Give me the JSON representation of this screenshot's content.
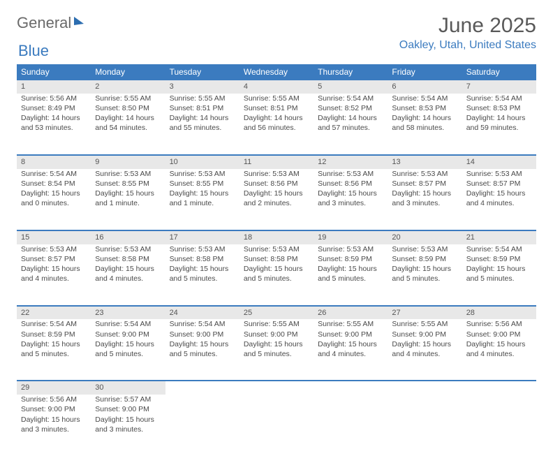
{
  "logo": {
    "word1": "General",
    "word2": "Blue"
  },
  "title": "June 2025",
  "location": "Oakley, Utah, United States",
  "colors": {
    "header_bg": "#3b7bbf",
    "header_text": "#ffffff",
    "accent": "#3b7bbf",
    "daynum_bg": "#e8e8e8",
    "text": "#4a4a4a",
    "title_text": "#595959"
  },
  "weekdays": [
    "Sunday",
    "Monday",
    "Tuesday",
    "Wednesday",
    "Thursday",
    "Friday",
    "Saturday"
  ],
  "weeks": [
    [
      {
        "n": "1",
        "sr": "5:56 AM",
        "ss": "8:49 PM",
        "dl": "14 hours and 53 minutes."
      },
      {
        "n": "2",
        "sr": "5:55 AM",
        "ss": "8:50 PM",
        "dl": "14 hours and 54 minutes."
      },
      {
        "n": "3",
        "sr": "5:55 AM",
        "ss": "8:51 PM",
        "dl": "14 hours and 55 minutes."
      },
      {
        "n": "4",
        "sr": "5:55 AM",
        "ss": "8:51 PM",
        "dl": "14 hours and 56 minutes."
      },
      {
        "n": "5",
        "sr": "5:54 AM",
        "ss": "8:52 PM",
        "dl": "14 hours and 57 minutes."
      },
      {
        "n": "6",
        "sr": "5:54 AM",
        "ss": "8:53 PM",
        "dl": "14 hours and 58 minutes."
      },
      {
        "n": "7",
        "sr": "5:54 AM",
        "ss": "8:53 PM",
        "dl": "14 hours and 59 minutes."
      }
    ],
    [
      {
        "n": "8",
        "sr": "5:54 AM",
        "ss": "8:54 PM",
        "dl": "15 hours and 0 minutes."
      },
      {
        "n": "9",
        "sr": "5:53 AM",
        "ss": "8:55 PM",
        "dl": "15 hours and 1 minute."
      },
      {
        "n": "10",
        "sr": "5:53 AM",
        "ss": "8:55 PM",
        "dl": "15 hours and 1 minute."
      },
      {
        "n": "11",
        "sr": "5:53 AM",
        "ss": "8:56 PM",
        "dl": "15 hours and 2 minutes."
      },
      {
        "n": "12",
        "sr": "5:53 AM",
        "ss": "8:56 PM",
        "dl": "15 hours and 3 minutes."
      },
      {
        "n": "13",
        "sr": "5:53 AM",
        "ss": "8:57 PM",
        "dl": "15 hours and 3 minutes."
      },
      {
        "n": "14",
        "sr": "5:53 AM",
        "ss": "8:57 PM",
        "dl": "15 hours and 4 minutes."
      }
    ],
    [
      {
        "n": "15",
        "sr": "5:53 AM",
        "ss": "8:57 PM",
        "dl": "15 hours and 4 minutes."
      },
      {
        "n": "16",
        "sr": "5:53 AM",
        "ss": "8:58 PM",
        "dl": "15 hours and 4 minutes."
      },
      {
        "n": "17",
        "sr": "5:53 AM",
        "ss": "8:58 PM",
        "dl": "15 hours and 5 minutes."
      },
      {
        "n": "18",
        "sr": "5:53 AM",
        "ss": "8:58 PM",
        "dl": "15 hours and 5 minutes."
      },
      {
        "n": "19",
        "sr": "5:53 AM",
        "ss": "8:59 PM",
        "dl": "15 hours and 5 minutes."
      },
      {
        "n": "20",
        "sr": "5:53 AM",
        "ss": "8:59 PM",
        "dl": "15 hours and 5 minutes."
      },
      {
        "n": "21",
        "sr": "5:54 AM",
        "ss": "8:59 PM",
        "dl": "15 hours and 5 minutes."
      }
    ],
    [
      {
        "n": "22",
        "sr": "5:54 AM",
        "ss": "8:59 PM",
        "dl": "15 hours and 5 minutes."
      },
      {
        "n": "23",
        "sr": "5:54 AM",
        "ss": "9:00 PM",
        "dl": "15 hours and 5 minutes."
      },
      {
        "n": "24",
        "sr": "5:54 AM",
        "ss": "9:00 PM",
        "dl": "15 hours and 5 minutes."
      },
      {
        "n": "25",
        "sr": "5:55 AM",
        "ss": "9:00 PM",
        "dl": "15 hours and 5 minutes."
      },
      {
        "n": "26",
        "sr": "5:55 AM",
        "ss": "9:00 PM",
        "dl": "15 hours and 4 minutes."
      },
      {
        "n": "27",
        "sr": "5:55 AM",
        "ss": "9:00 PM",
        "dl": "15 hours and 4 minutes."
      },
      {
        "n": "28",
        "sr": "5:56 AM",
        "ss": "9:00 PM",
        "dl": "15 hours and 4 minutes."
      }
    ],
    [
      {
        "n": "29",
        "sr": "5:56 AM",
        "ss": "9:00 PM",
        "dl": "15 hours and 3 minutes."
      },
      {
        "n": "30",
        "sr": "5:57 AM",
        "ss": "9:00 PM",
        "dl": "15 hours and 3 minutes."
      },
      null,
      null,
      null,
      null,
      null
    ]
  ],
  "labels": {
    "sunrise": "Sunrise: ",
    "sunset": "Sunset: ",
    "daylight": "Daylight: "
  }
}
